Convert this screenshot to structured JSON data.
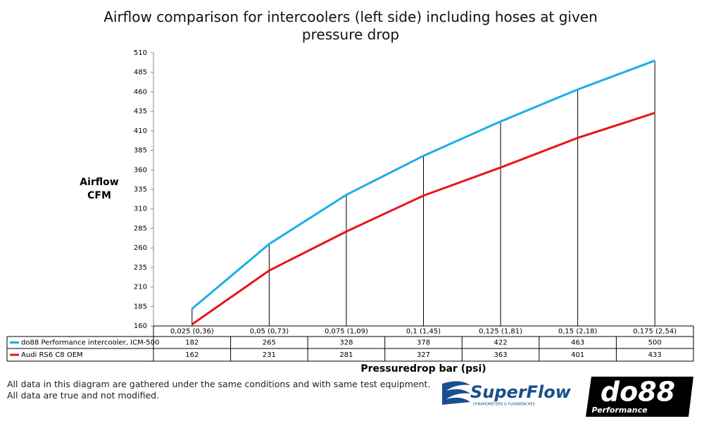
{
  "chart_data": {
    "type": "line",
    "title": "Airflow comparison for intercoolers (left side) including hoses at given pressure drop",
    "y_label": "Airflow CFM",
    "x_label": "Pressuredrop bar (psi)",
    "categories": [
      "0,025 (0,36)",
      "0,05 (0,73)",
      "0,075 (1,09)",
      "0,1 (1,45)",
      "0,125 (1,81)",
      "0,15 (2,18)",
      "0,175 (2,54)"
    ],
    "series": [
      {
        "name": "do88 Performance intercooler, ICM-500",
        "color": "#1aaee8",
        "values": [
          182,
          265,
          328,
          378,
          422,
          463,
          500
        ]
      },
      {
        "name": "Audi RS6 C8 OEM",
        "color": "#e8141c",
        "values": [
          162,
          231,
          281,
          327,
          363,
          401,
          433
        ]
      }
    ],
    "ylim": [
      160,
      510
    ],
    "yticks": [
      160,
      185,
      210,
      235,
      260,
      285,
      310,
      335,
      360,
      385,
      410,
      435,
      460,
      485,
      510
    ],
    "drop_lines": true,
    "notes": [
      "All data in this diagram are gathered under the same conditions and with same test equipment.",
      "All data are true and not modified."
    ],
    "logos": {
      "superflow": "SuperFlow",
      "superflow_tagline": "DYNAMOMETERS & FLOWBENCHES",
      "do88": "do88",
      "do88_sub": "Performance"
    }
  }
}
